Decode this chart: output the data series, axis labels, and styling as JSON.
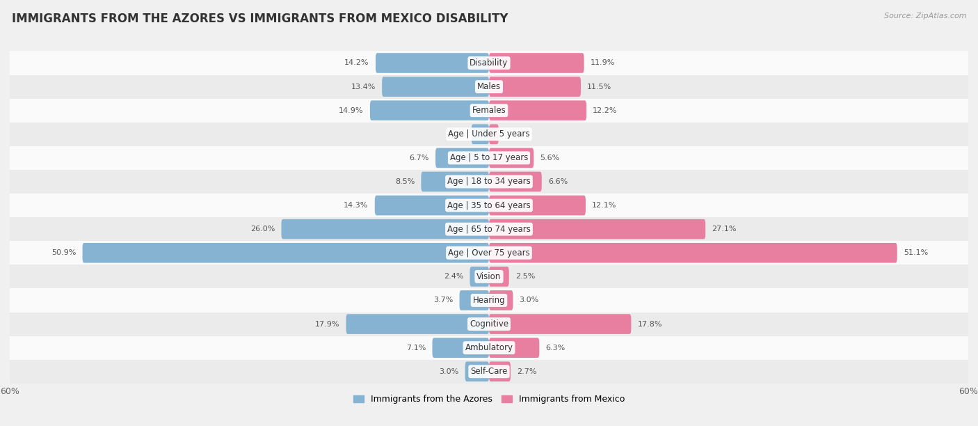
{
  "title": "IMMIGRANTS FROM THE AZORES VS IMMIGRANTS FROM MEXICO DISABILITY",
  "source": "Source: ZipAtlas.com",
  "categories": [
    "Disability",
    "Males",
    "Females",
    "Age | Under 5 years",
    "Age | 5 to 17 years",
    "Age | 18 to 34 years",
    "Age | 35 to 64 years",
    "Age | 65 to 74 years",
    "Age | Over 75 years",
    "Vision",
    "Hearing",
    "Cognitive",
    "Ambulatory",
    "Self-Care"
  ],
  "azores_values": [
    14.2,
    13.4,
    14.9,
    2.2,
    6.7,
    8.5,
    14.3,
    26.0,
    50.9,
    2.4,
    3.7,
    17.9,
    7.1,
    3.0
  ],
  "mexico_values": [
    11.9,
    11.5,
    12.2,
    1.2,
    5.6,
    6.6,
    12.1,
    27.1,
    51.1,
    2.5,
    3.0,
    17.8,
    6.3,
    2.7
  ],
  "azores_color": "#85b3d1",
  "mexico_color": "#e87ea0",
  "axis_max": 60.0,
  "background_color": "#f0f0f0",
  "row_colors": [
    "#fafafa",
    "#ebebeb"
  ],
  "legend_azores": "Immigrants from the Azores",
  "legend_mexico": "Immigrants from Mexico",
  "title_fontsize": 12,
  "label_fontsize": 8.5,
  "value_fontsize": 8
}
